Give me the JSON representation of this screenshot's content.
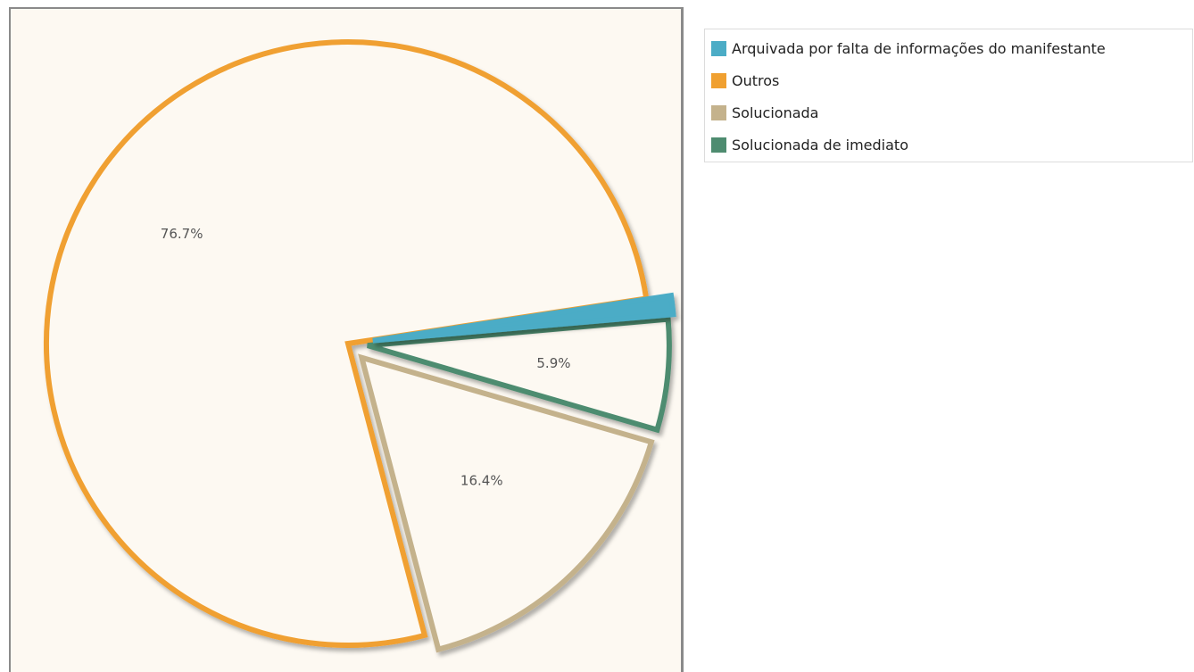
{
  "chart_data": {
    "type": "pie",
    "slices": [
      {
        "label": "Arquivada por falta de informações do manifestante",
        "value": 1.0,
        "color": "#4bacc6",
        "data_label": ""
      },
      {
        "label": "Outros",
        "value": 76.7,
        "color": "#f0a030",
        "data_label": "76.7%"
      },
      {
        "label": "Solucionada",
        "value": 16.4,
        "color": "#c4b28c",
        "data_label": "16.4%"
      },
      {
        "label": "Solucionada de imediato",
        "value": 5.9,
        "color": "#4e8c70",
        "data_label": "5.9%"
      }
    ],
    "legend_position": "top-right",
    "background_color": "#fdf9f2"
  }
}
